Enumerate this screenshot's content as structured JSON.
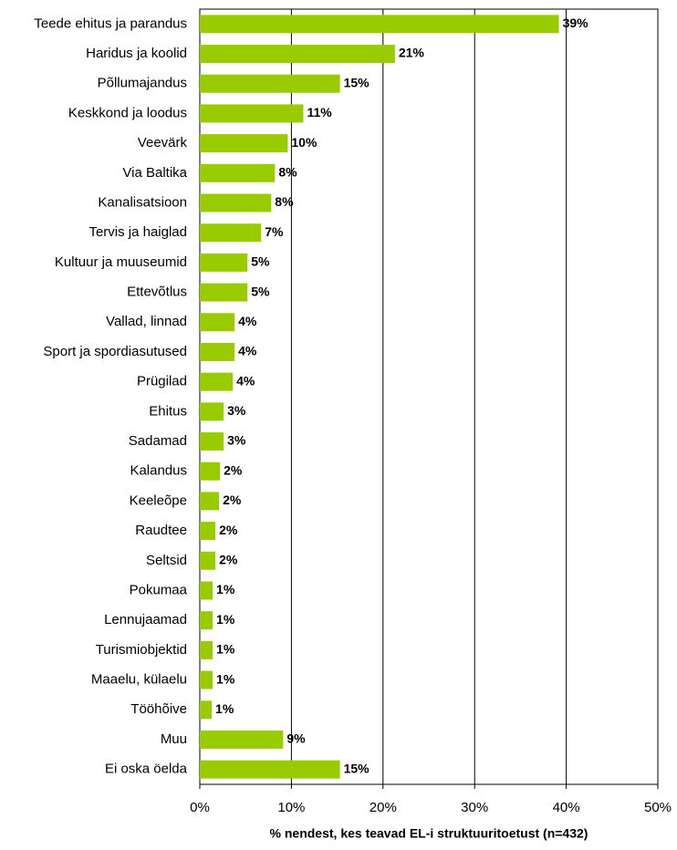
{
  "chart_data": {
    "type": "barh",
    "x_label": "% nendest, kes teavad EL-i struktuuritoetust (n=432)",
    "categories": [
      "Teede ehitus ja parandus",
      "Haridus ja koolid",
      "Põllumajandus",
      "Keskkond ja loodus",
      "Veevärk",
      "Via Baltika",
      "Kanalisatsioon",
      "Tervis ja haiglad",
      "Kultuur ja muuseumid",
      "Ettevõtlus",
      "Vallad, linnad",
      "Sport ja spordiasutused",
      "Prügilad",
      "Ehitus",
      "Sadamad",
      "Kalandus",
      "Keeleõpe",
      "Raudtee",
      "Seltsid",
      "Pokumaa",
      "Lennujaamad",
      "Turismiobjektid",
      "Maaelu, külaelu",
      "Tööhõive",
      "Muu",
      "Ei oska öelda"
    ],
    "values": [
      39.2,
      21.3,
      15.3,
      11.3,
      9.6,
      8.2,
      7.8,
      6.7,
      5.2,
      5.2,
      3.8,
      3.8,
      3.6,
      2.6,
      2.6,
      2.2,
      2.1,
      1.7,
      1.7,
      1.4,
      1.4,
      1.4,
      1.4,
      1.3,
      9.1,
      15.3
    ],
    "value_labels": [
      "39%",
      "21%",
      "15%",
      "11%",
      "10%",
      "8%",
      "8%",
      "7%",
      "5%",
      "5%",
      "4%",
      "4%",
      "4%",
      "3%",
      "3%",
      "2%",
      "2%",
      "2%",
      "2%",
      "1%",
      "1%",
      "1%",
      "1%",
      "1%",
      "9%",
      "15%"
    ],
    "color": "#99cc00",
    "xlim": [
      0,
      50
    ],
    "xticks": [
      {
        "value": 0,
        "label": "0%"
      },
      {
        "value": 10,
        "label": "10%"
      },
      {
        "value": 20,
        "label": "20%"
      },
      {
        "value": 30,
        "label": "30%"
      },
      {
        "value": 40,
        "label": "40%"
      },
      {
        "value": 50,
        "label": "50%"
      }
    ],
    "grid": true
  }
}
